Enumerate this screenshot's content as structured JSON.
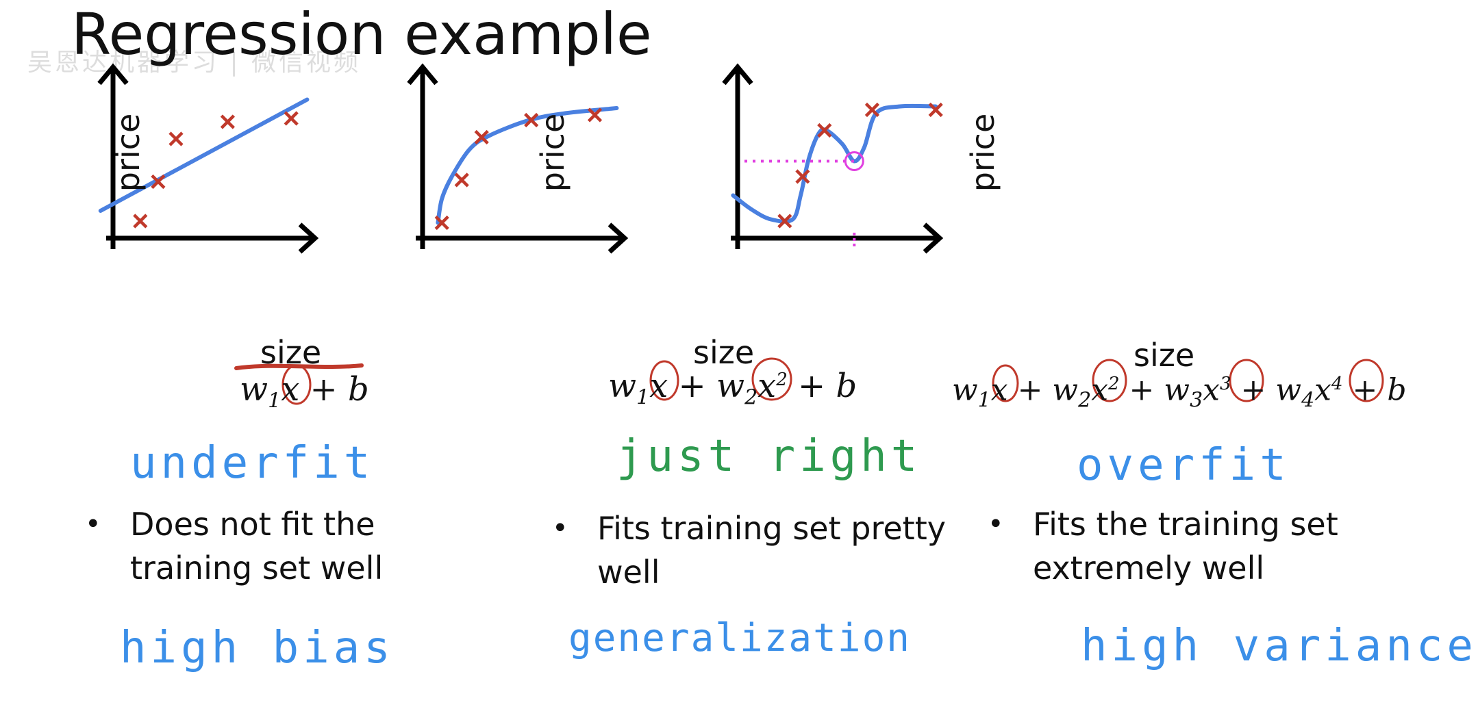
{
  "title": "Regression example",
  "watermark": "吴恩达机器学习 | 微信视频",
  "colors": {
    "curve": "#4a80e0",
    "points": "#c0392b",
    "underfit": "#3b8fe8",
    "just_right": "#2e9a4f",
    "overfit": "#3b8fe8",
    "bias": "#3b8fe8",
    "generalization": "#3b8fe8",
    "variance": "#3b8fe8",
    "annotation": "#e040e0"
  },
  "panels": [
    {
      "id": "underfit",
      "xlabel": "size",
      "ylabel": "price",
      "formula": "w1x + b",
      "fit_label": "underfit",
      "bullet": "Does not fit the training set well",
      "diagnosis": "high bias"
    },
    {
      "id": "just-right",
      "xlabel": "size",
      "ylabel": "price",
      "formula": "w1x + w2x2 + b",
      "fit_label": "just right",
      "bullet": "Fits training set pretty well",
      "diagnosis": "generalization"
    },
    {
      "id": "overfit",
      "xlabel": "size",
      "ylabel": "price",
      "formula": "w1x + w2x2 + w3x3 + w4x4 + b",
      "fit_label": "overfit",
      "bullet": "Fits the training set extremely well",
      "diagnosis": "high variance"
    }
  ],
  "chart_data": [
    {
      "type": "scatter",
      "xlabel": "size",
      "ylabel": "price",
      "xlim": [
        0,
        10
      ],
      "ylim": [
        0,
        10
      ],
      "points": [
        [
          1.2,
          1.0
        ],
        [
          2.1,
          3.3
        ],
        [
          3.0,
          5.8
        ],
        [
          5.6,
          6.8
        ],
        [
          8.8,
          7.0
        ]
      ],
      "fit": {
        "model": "linear",
        "curve": [
          [
            -0.8,
            1.6
          ],
          [
            9.6,
            8.1
          ]
        ]
      }
    },
    {
      "type": "scatter",
      "xlabel": "size",
      "ylabel": "price",
      "xlim": [
        0,
        10
      ],
      "ylim": [
        0,
        10
      ],
      "points": [
        [
          0.8,
          0.9
        ],
        [
          1.8,
          3.4
        ],
        [
          2.8,
          5.9
        ],
        [
          5.3,
          6.9
        ],
        [
          8.5,
          7.2
        ]
      ],
      "fit": {
        "model": "quadratic",
        "curve": [
          [
            0.6,
            0.9
          ],
          [
            0.8,
            2.3
          ],
          [
            1.3,
            3.6
          ],
          [
            2.2,
            5.2
          ],
          [
            3.2,
            6.0
          ],
          [
            5.2,
            6.9
          ],
          [
            7.0,
            7.3
          ],
          [
            9.6,
            7.6
          ]
        ]
      }
    },
    {
      "type": "scatter",
      "xlabel": "size",
      "ylabel": "price",
      "xlim": [
        0,
        10
      ],
      "ylim": [
        0,
        10
      ],
      "points": [
        [
          2.2,
          1.0
        ],
        [
          3.1,
          3.6
        ],
        [
          4.2,
          6.3
        ],
        [
          6.6,
          7.5
        ],
        [
          9.8,
          7.5
        ]
      ],
      "fit": {
        "model": "quartic",
        "curve": [
          [
            -0.4,
            2.5
          ],
          [
            0.5,
            1.7
          ],
          [
            1.5,
            1.1
          ],
          [
            2.6,
            1.1
          ],
          [
            3.0,
            2.5
          ],
          [
            3.4,
            4.6
          ],
          [
            3.9,
            6.1
          ],
          [
            4.3,
            6.3
          ],
          [
            5.1,
            5.5
          ],
          [
            5.7,
            4.5
          ],
          [
            6.2,
            5.3
          ],
          [
            6.8,
            7.3
          ],
          [
            8.0,
            7.7
          ],
          [
            9.8,
            7.7
          ]
        ]
      },
      "annotations": [
        {
          "type": "dotted-guide",
          "x": 5.7,
          "y": 4.5,
          "note": "prediction for a new size"
        }
      ]
    }
  ]
}
